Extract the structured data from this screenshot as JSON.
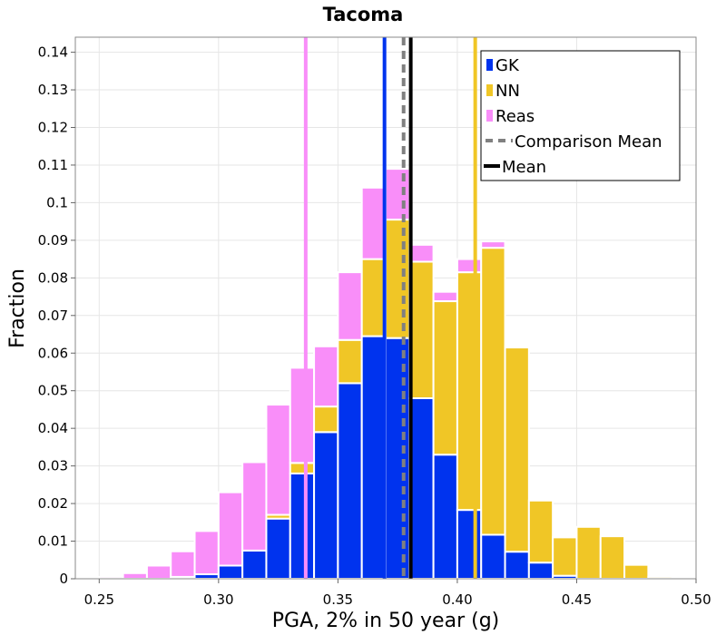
{
  "chart_data": {
    "type": "bar",
    "stacked": true,
    "title": "Tacoma",
    "xlabel": "PGA, 2% in 50 year (g)",
    "ylabel": "Fraction",
    "xlim": [
      0.24,
      0.5
    ],
    "ylim": [
      0,
      0.144
    ],
    "xticks": [
      "0.25",
      "0.30",
      "0.35",
      "0.40",
      "0.45",
      "0.50"
    ],
    "yticks": [
      "0",
      "0.01",
      "0.02",
      "0.03",
      "0.04",
      "0.05",
      "0.06",
      "0.07",
      "0.08",
      "0.09",
      "0.1",
      "0.11",
      "0.12",
      "0.13",
      "0.14"
    ],
    "bin_width": 0.01,
    "bin_starts": [
      0.25,
      0.26,
      0.27,
      0.28,
      0.29,
      0.3,
      0.31,
      0.32,
      0.33,
      0.34,
      0.35,
      0.36,
      0.37,
      0.38,
      0.39,
      0.4,
      0.41,
      0.42,
      0.43,
      0.44,
      0.45,
      0.46,
      0.47,
      0.48
    ],
    "series": [
      {
        "name": "GK",
        "color": "#0033ee",
        "values": [
          0,
          0,
          0,
          0.0005,
          0.0012,
          0.0035,
          0.0075,
          0.016,
          0.028,
          0.039,
          0.052,
          0.0645,
          0.064,
          0.048,
          0.033,
          0.0183,
          0.0117,
          0.0072,
          0.0043,
          0.0008,
          0,
          0,
          0,
          0
        ]
      },
      {
        "name": "NN",
        "color": "#f0c626",
        "values": [
          0,
          0,
          0,
          0,
          0,
          0,
          0,
          0.001,
          0.0028,
          0.0068,
          0.0115,
          0.0205,
          0.0315,
          0.0363,
          0.0408,
          0.0632,
          0.0763,
          0.0543,
          0.0165,
          0.0102,
          0.0138,
          0.0113,
          0.0037,
          0.0005
        ]
      },
      {
        "name": "Reas",
        "color": "#f98ef9",
        "values": [
          0.0005,
          0.0015,
          0.0035,
          0.0068,
          0.0115,
          0.0195,
          0.0235,
          0.0293,
          0.0253,
          0.016,
          0.018,
          0.019,
          0.0135,
          0.0045,
          0.0025,
          0.0035,
          0.0017,
          0.0003,
          0,
          0,
          0,
          0,
          0,
          0
        ]
      }
    ],
    "vertical_lines": [
      {
        "name": "GK",
        "x": 0.3695,
        "color": "#0033ee",
        "style": "solid"
      },
      {
        "name": "NN",
        "x": 0.4075,
        "color": "#f0c626",
        "style": "solid"
      },
      {
        "name": "Reas",
        "x": 0.3365,
        "color": "#f98ef9",
        "style": "solid"
      },
      {
        "name": "Comparison Mean",
        "x": 0.3775,
        "color": "#808080",
        "style": "dashed"
      },
      {
        "name": "Mean",
        "x": 0.3805,
        "color": "#000000",
        "style": "solid"
      }
    ],
    "legend": {
      "position": "top-right",
      "entries": [
        {
          "label": "GK",
          "color": "#0033ee",
          "kind": "box"
        },
        {
          "label": "NN",
          "color": "#f0c626",
          "kind": "box"
        },
        {
          "label": "Reas",
          "color": "#f98ef9",
          "kind": "box"
        },
        {
          "label": "Comparison Mean",
          "color": "#808080",
          "kind": "dashed-line"
        },
        {
          "label": "Mean",
          "color": "#000000",
          "kind": "solid-line"
        }
      ]
    },
    "grid": true
  }
}
